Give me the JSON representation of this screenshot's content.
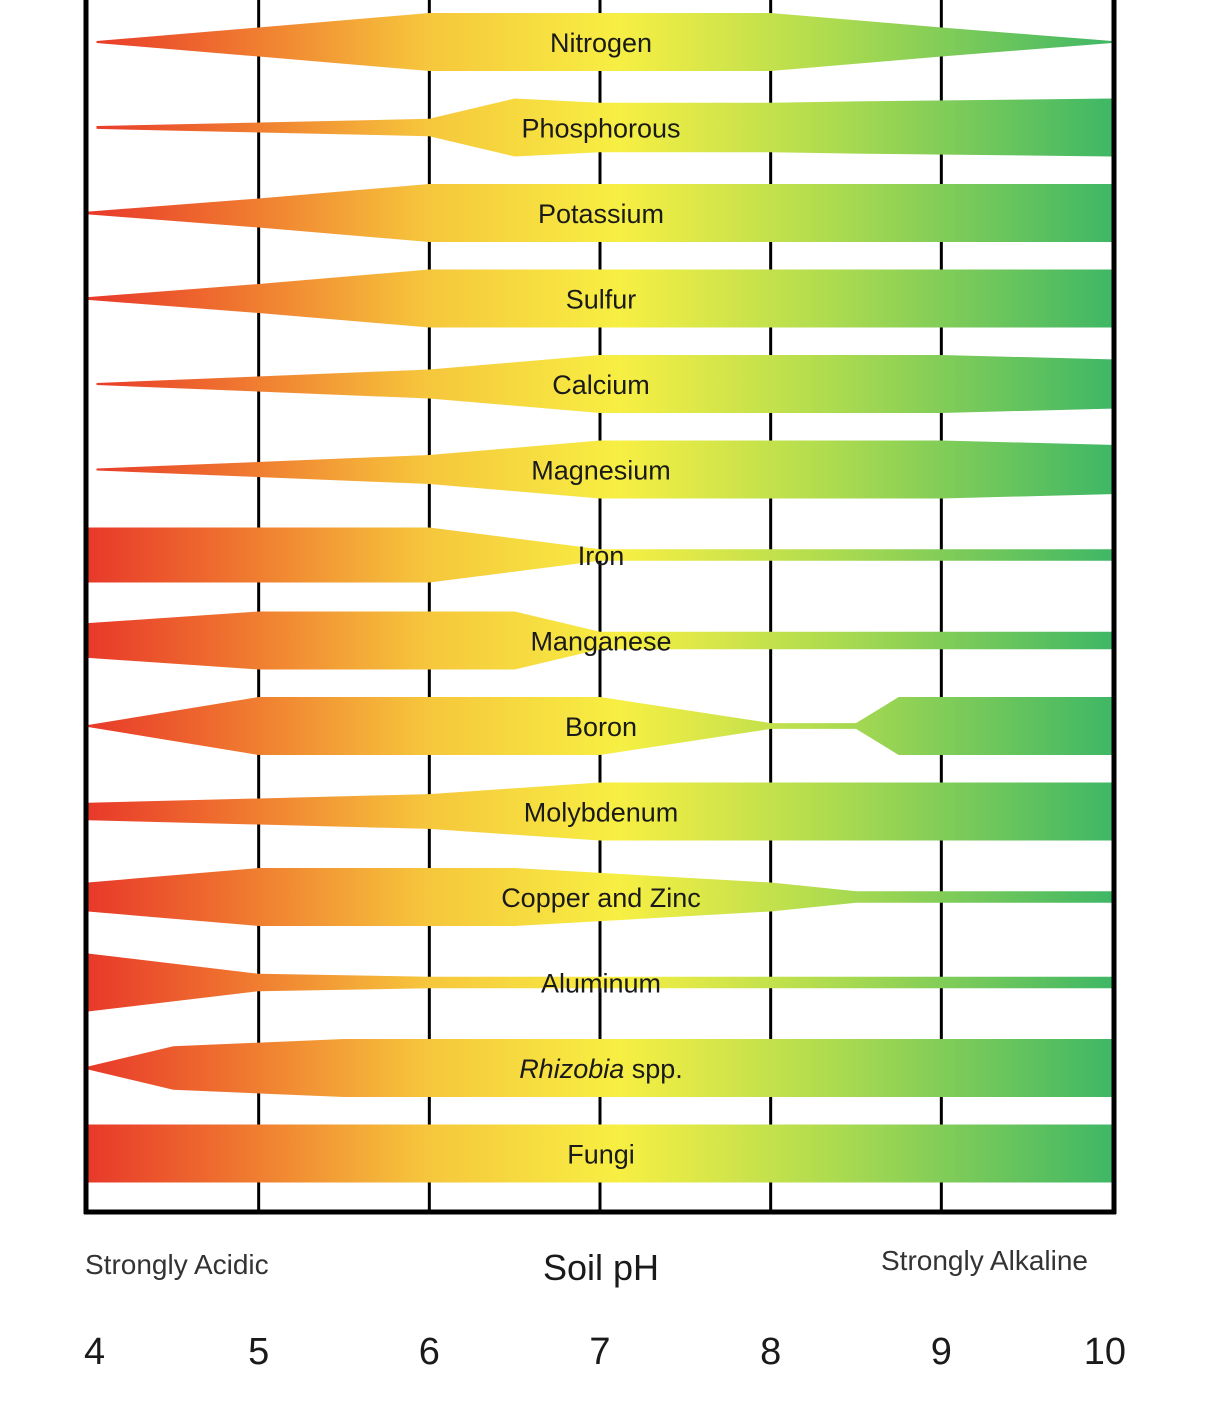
{
  "chart_data": {
    "type": "area",
    "title": "",
    "xlabel": "Soil pH",
    "left_annotation": "Strongly Acidic",
    "right_annotation": "Strongly Alkaline",
    "xlim": [
      4,
      10
    ],
    "x_ticks": [
      "4",
      "5",
      "6",
      "7",
      "8",
      "9",
      "10"
    ],
    "grid": true,
    "value_meaning": "relative availability (band width), 0 to 1",
    "colors": {
      "acidic": "#e8392a",
      "orange": "#f39a34",
      "neutral": "#f7ef43",
      "alkaline": "#3fb765",
      "axis": "#000000"
    },
    "series": [
      {
        "name": "Nitrogen",
        "text": "Nitrogen",
        "italic": "",
        "points": [
          [
            4.05,
            0.02
          ],
          [
            5,
            0.5
          ],
          [
            6,
            1
          ],
          [
            8,
            1
          ],
          [
            9,
            0.5
          ],
          [
            10,
            0.02
          ]
        ]
      },
      {
        "name": "Phosphorous",
        "text": "Phosphorous",
        "italic": "",
        "points": [
          [
            4.05,
            0.05
          ],
          [
            6,
            0.3
          ],
          [
            6.5,
            1
          ],
          [
            7,
            0.85
          ],
          [
            8,
            0.85
          ],
          [
            8.5,
            0.9
          ],
          [
            10,
            1
          ]
        ]
      },
      {
        "name": "Potassium",
        "text": "Potassium",
        "italic": "",
        "points": [
          [
            4,
            0.05
          ],
          [
            5,
            0.5
          ],
          [
            6,
            1
          ],
          [
            10,
            1
          ]
        ]
      },
      {
        "name": "Sulfur",
        "text": "Sulfur",
        "italic": "",
        "points": [
          [
            4,
            0.05
          ],
          [
            5,
            0.5
          ],
          [
            6,
            1
          ],
          [
            10,
            1
          ]
        ]
      },
      {
        "name": "Calcium",
        "text": "Calcium",
        "italic": "",
        "points": [
          [
            4.05,
            0.02
          ],
          [
            6,
            0.5
          ],
          [
            7,
            1
          ],
          [
            9,
            1
          ],
          [
            10,
            0.85
          ]
        ]
      },
      {
        "name": "Magnesium",
        "text": "Magnesium",
        "italic": "",
        "points": [
          [
            4.05,
            0.02
          ],
          [
            6,
            0.5
          ],
          [
            7,
            1
          ],
          [
            9,
            1
          ],
          [
            10,
            0.85
          ]
        ]
      },
      {
        "name": "Iron",
        "text": "Iron",
        "italic": "",
        "points": [
          [
            4,
            0.95
          ],
          [
            6,
            0.95
          ],
          [
            7,
            0.2
          ],
          [
            10,
            0.2
          ]
        ]
      },
      {
        "name": "Manganese",
        "text": "Manganese",
        "italic": "",
        "points": [
          [
            4,
            0.6
          ],
          [
            5,
            1
          ],
          [
            6.5,
            1
          ],
          [
            7,
            0.3
          ],
          [
            10,
            0.3
          ]
        ]
      },
      {
        "name": "Boron",
        "text": "Boron",
        "italic": "",
        "points": [
          [
            4,
            0.02
          ],
          [
            5,
            1
          ],
          [
            7,
            1
          ],
          [
            8,
            0.1
          ],
          [
            8.5,
            0.1
          ],
          [
            8.75,
            1
          ],
          [
            10,
            1
          ]
        ]
      },
      {
        "name": "Molybdenum",
        "text": "Molybdenum",
        "italic": "",
        "points": [
          [
            4,
            0.3
          ],
          [
            6,
            0.6
          ],
          [
            7,
            1
          ],
          [
            10,
            1
          ]
        ]
      },
      {
        "name": "Copper and Zinc",
        "text": "Copper and Zinc",
        "italic": "",
        "points": [
          [
            4,
            0.5
          ],
          [
            5,
            1
          ],
          [
            6.5,
            1
          ],
          [
            8,
            0.5
          ],
          [
            8.5,
            0.2
          ],
          [
            10,
            0.2
          ]
        ]
      },
      {
        "name": "Aluminum",
        "text": "Aluminum",
        "italic": "",
        "points": [
          [
            4,
            1
          ],
          [
            5,
            0.3
          ],
          [
            6,
            0.2
          ],
          [
            10,
            0.2
          ]
        ]
      },
      {
        "name": "Rhizobia spp.",
        "text": " spp.",
        "italic": "Rhizobia",
        "points": [
          [
            4,
            0.05
          ],
          [
            4.5,
            0.75
          ],
          [
            5.5,
            1
          ],
          [
            10,
            1
          ]
        ]
      },
      {
        "name": "Fungi",
        "text": "Fungi",
        "italic": "",
        "points": [
          [
            4,
            1
          ],
          [
            10,
            1
          ]
        ]
      }
    ]
  }
}
